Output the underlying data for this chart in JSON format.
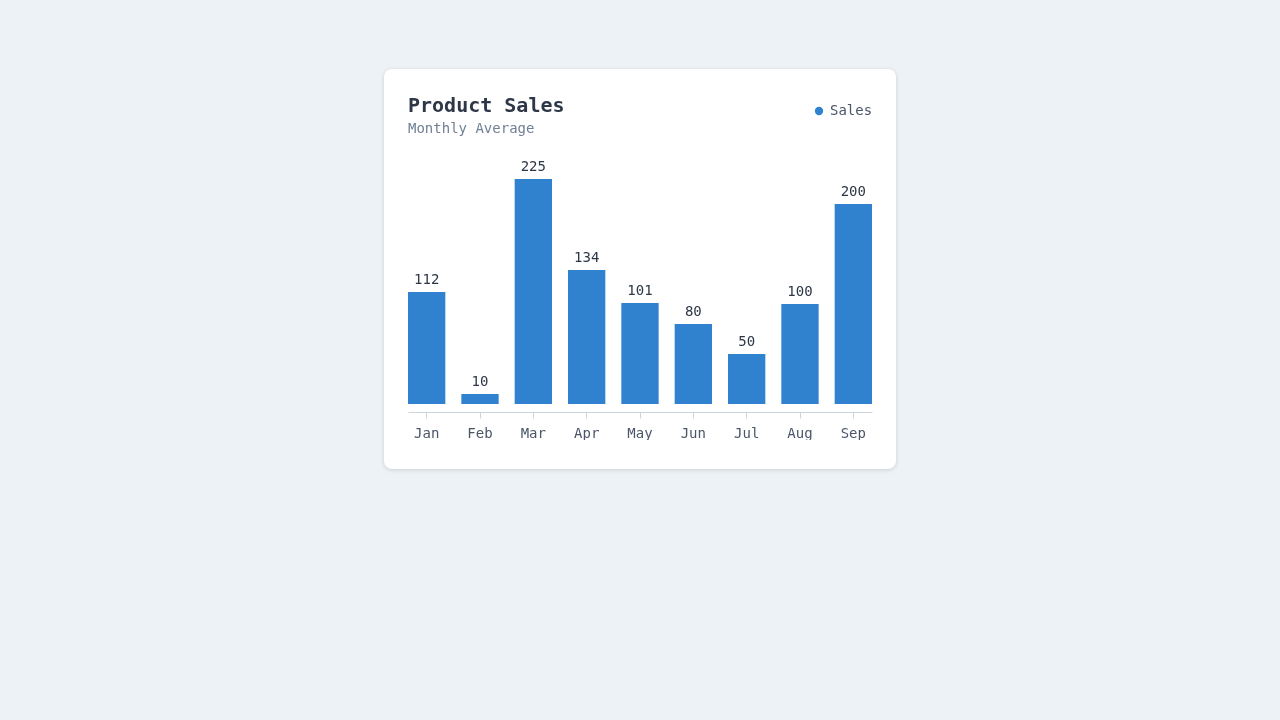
{
  "chart_data": {
    "type": "bar",
    "title": "Product Sales",
    "subtitle": "Monthly Average",
    "categories": [
      "Jan",
      "Feb",
      "Mar",
      "Apr",
      "May",
      "Jun",
      "Jul",
      "Aug",
      "Sep"
    ],
    "series": [
      {
        "name": "Sales",
        "color": "#3182ce",
        "values": [
          112,
          10,
          225,
          134,
          101,
          80,
          50,
          100,
          200
        ]
      }
    ],
    "ylim": [
      0,
      225
    ],
    "legend": "top right",
    "data_labels": true,
    "tick_labels": "x"
  }
}
